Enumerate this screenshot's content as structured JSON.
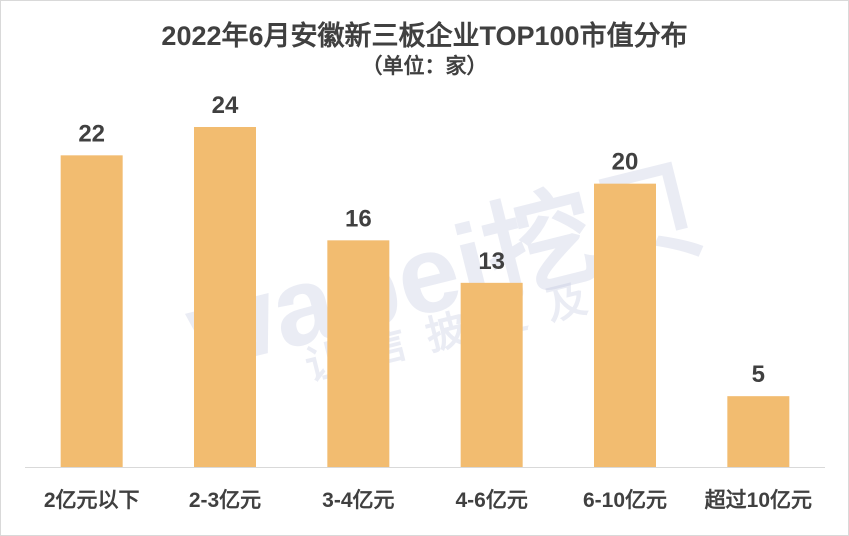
{
  "chart_data": {
    "type": "bar",
    "title": "2022年6月安徽新三板企业TOP100市值分布",
    "subtitle": "（单位：家）",
    "categories": [
      "2亿元以下",
      "2-3亿元",
      "3-4亿元",
      "4-6亿元",
      "6-10亿元",
      "超过10亿元"
    ],
    "values": [
      22,
      24,
      16,
      13,
      20,
      5
    ],
    "ylim": [
      0,
      24
    ],
    "grid": false,
    "data_labels": true,
    "colors": {
      "bar": "#F2BC70",
      "text": "#404040",
      "axis": "#d9d9d9"
    }
  },
  "watermark": {
    "logo": "wabei挖贝",
    "slogan": "让信披更及时"
  }
}
